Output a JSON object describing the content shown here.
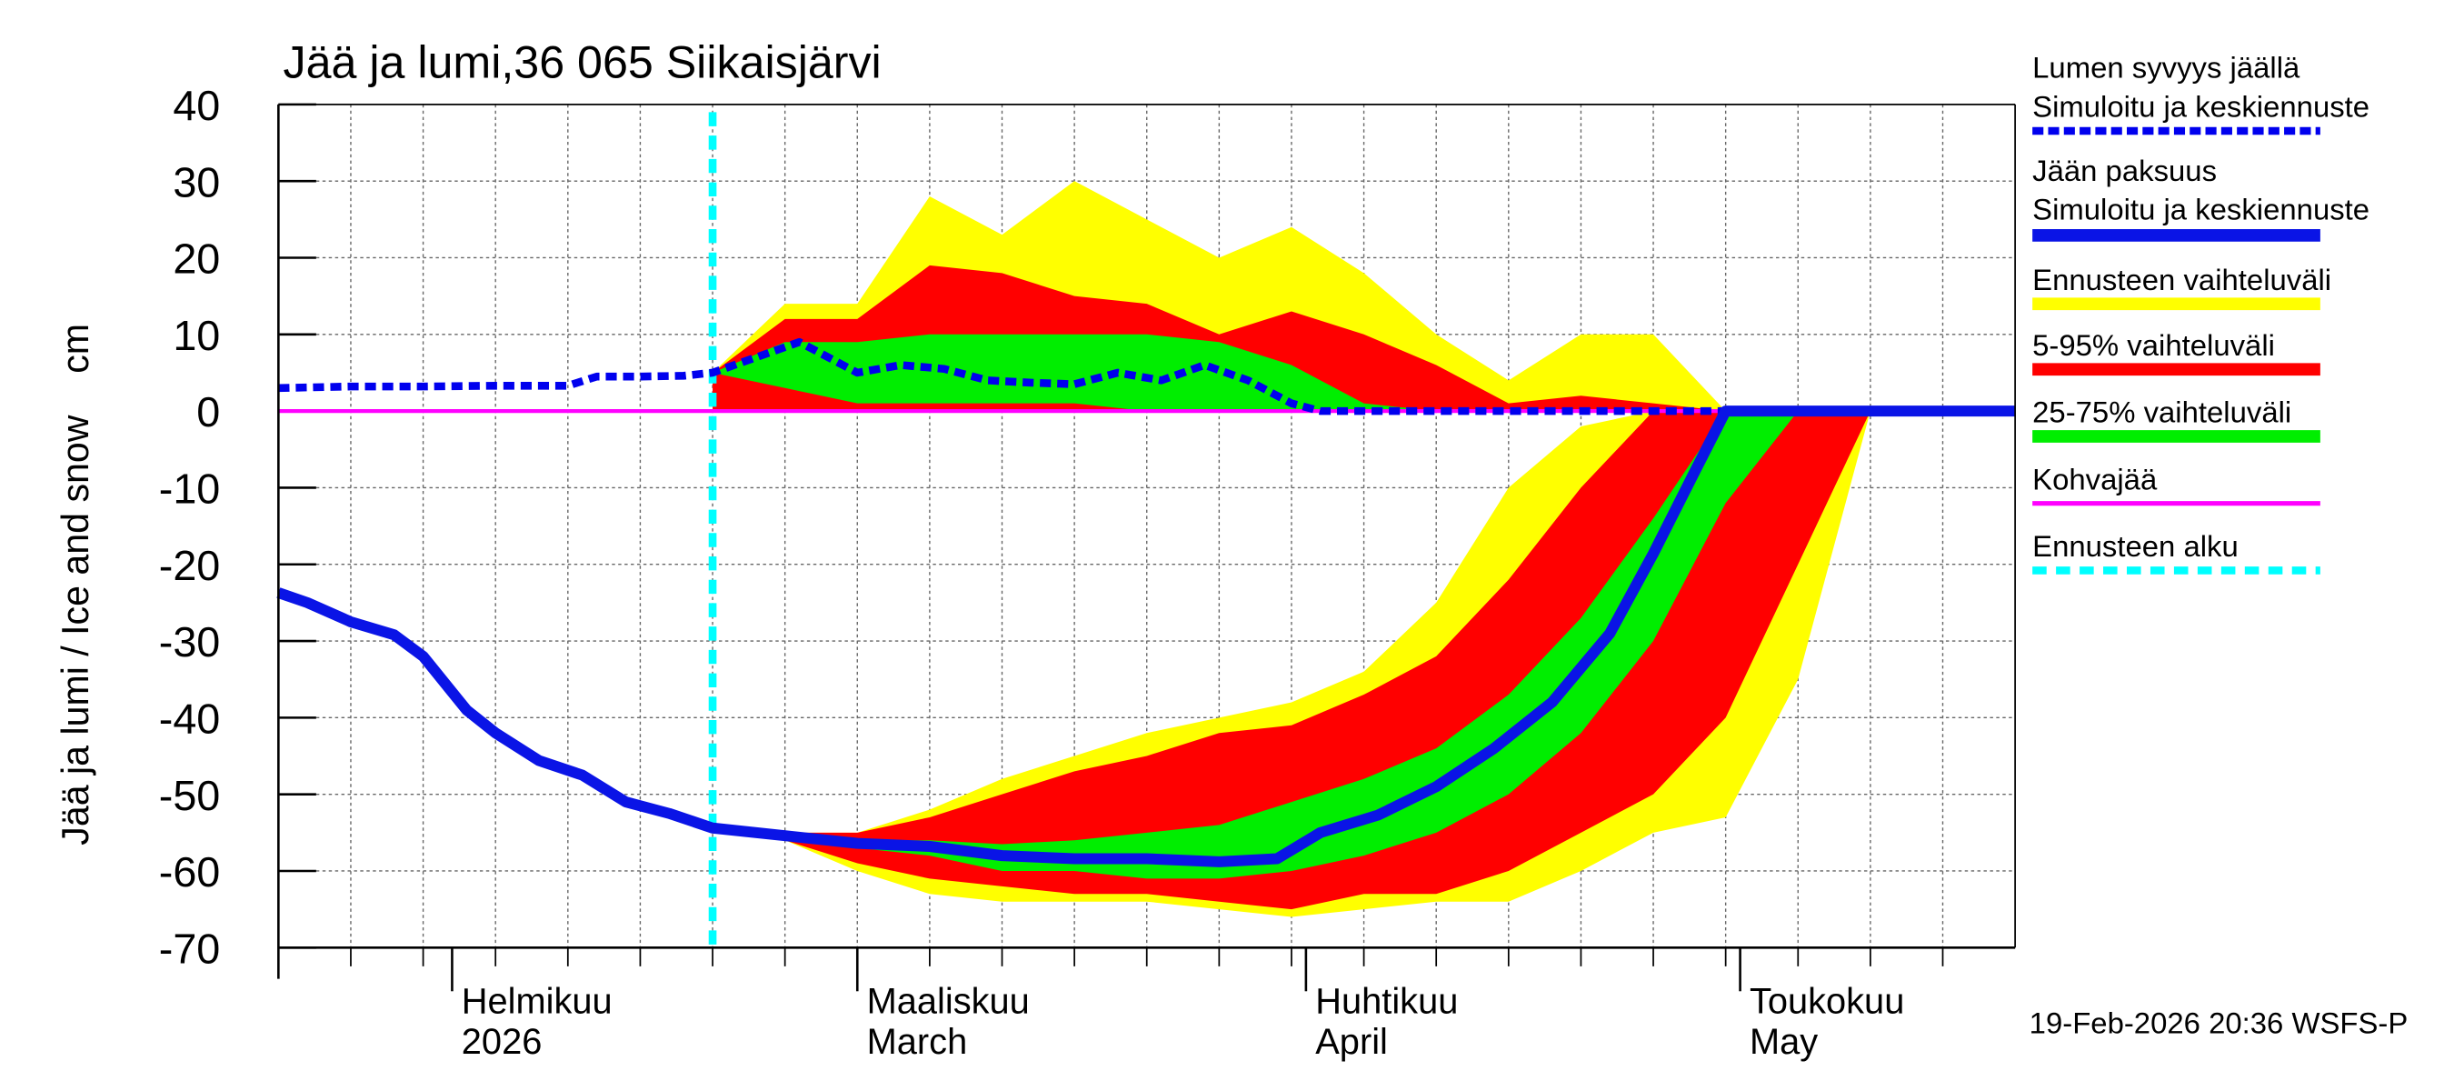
{
  "chart_data": {
    "type": "line",
    "title": "Jää ja lumi,36 065 Siikaisjärvi",
    "y_label": "Jää ja lumi / Ice and snow    cm",
    "footer": "19-Feb-2026 20:36 WSFS-P",
    "xlim": [
      20,
      140
    ],
    "xticks": [
      {
        "value": 32,
        "label": "Helmikuu\n2026"
      },
      {
        "value": 60,
        "label": "Maaliskuu\nMarch"
      },
      {
        "value": 91,
        "label": "Huhtikuu\nApril"
      },
      {
        "value": 121,
        "label": "Toukokuu\nMay"
      }
    ],
    "ylim": [
      -70,
      40
    ],
    "yticks": [
      40,
      30,
      20,
      10,
      0,
      -10,
      -20,
      -30,
      -40,
      -50,
      -60,
      -70
    ],
    "grid": true,
    "series": [
      {
        "name": "Lumen syvyys jäällä\nSimuloitu ja keskiennuste",
        "color": "#0000ee",
        "line_style": "dashed",
        "x": [
          20,
          25,
          30,
          35,
          40,
          42,
          45,
          48,
          50,
          53,
          56,
          58,
          60,
          63,
          66,
          69,
          72,
          75,
          78,
          81,
          84,
          87,
          90,
          92,
          100,
          110,
          120,
          130,
          140
        ],
        "values": [
          3,
          3.2,
          3.2,
          3.3,
          3.3,
          4.5,
          4.5,
          4.6,
          5,
          7,
          9,
          7,
          5,
          6,
          5.5,
          4,
          3.7,
          3.5,
          5,
          4,
          6,
          4,
          1,
          0,
          0,
          0,
          0,
          0,
          0
        ]
      },
      {
        "name": "Jään paksuus\nSimuloitu ja keskiennuste",
        "color": "#0a14e6",
        "line_style": "solid",
        "x": [
          20,
          22,
          25,
          28,
          30,
          33,
          35,
          38,
          41,
          44,
          47,
          50,
          55,
          60,
          65,
          70,
          75,
          80,
          85,
          89,
          92,
          96,
          100,
          104,
          108,
          112,
          115,
          118,
          120,
          130,
          140
        ],
        "values": [
          -23.7,
          -25,
          -27.5,
          -29.2,
          -32,
          -39,
          -42,
          -45.6,
          -47.5,
          -51,
          -52.5,
          -54.4,
          -55.4,
          -56.4,
          -56.8,
          -58,
          -58.4,
          -58.4,
          -58.8,
          -58.4,
          -55,
          -52.7,
          -49,
          -44,
          -38,
          -29,
          -18.6,
          -7.4,
          0,
          0,
          0
        ]
      },
      {
        "name": "Kohvajää",
        "color": "#ff00ff",
        "line_style": "thin",
        "x": [
          20,
          140
        ],
        "values": [
          0,
          0
        ]
      }
    ],
    "bands": [
      {
        "name": "Ennusteen vaihteluväli",
        "color": "#ffff00",
        "x": [
          50,
          55,
          60,
          65,
          70,
          75,
          80,
          85,
          90,
          95,
          100,
          105,
          110,
          115,
          120,
          125,
          130
        ],
        "snow_upper": [
          5,
          14,
          14,
          28,
          23,
          30,
          25,
          20,
          24,
          18,
          10,
          4,
          10,
          10,
          0,
          0,
          0
        ],
        "snow_lower": [
          0,
          0,
          0,
          0,
          0,
          0,
          0,
          0,
          0,
          0,
          0,
          0,
          0,
          0,
          0,
          0,
          0
        ],
        "ice_upper": [
          -54.4,
          -55,
          -55,
          -52,
          -48,
          -45,
          -42,
          -40,
          -38,
          -34,
          -25,
          -10,
          -2,
          0,
          0,
          0,
          0
        ],
        "ice_lower": [
          -54.4,
          -56,
          -60,
          -63,
          -64,
          -64,
          -64,
          -65,
          -66,
          -65,
          -64,
          -64,
          -60,
          -55,
          -53,
          -35,
          0
        ]
      },
      {
        "name": "5-95% vaihteluväli",
        "color": "#ff0000",
        "x": [
          50,
          55,
          60,
          65,
          70,
          75,
          80,
          85,
          90,
          95,
          100,
          105,
          110,
          115,
          120,
          125,
          130
        ],
        "snow_upper": [
          5,
          12,
          12,
          19,
          18,
          15,
          14,
          10,
          13,
          10,
          6,
          1,
          2,
          1,
          0,
          0,
          0
        ],
        "snow_lower": [
          0,
          0,
          0,
          0,
          0,
          0,
          0,
          0,
          0,
          0,
          0,
          0,
          0,
          0,
          0,
          0,
          0
        ],
        "ice_upper": [
          -54.4,
          -55,
          -55,
          -53,
          -50,
          -47,
          -45,
          -42,
          -41,
          -37,
          -32,
          -22,
          -10,
          0,
          0,
          0,
          0
        ],
        "ice_lower": [
          -54.4,
          -56,
          -59,
          -61,
          -62,
          -63,
          -63,
          -64,
          -65,
          -63,
          -63,
          -60,
          -55,
          -50,
          -40,
          -20,
          0
        ]
      },
      {
        "name": "25-75% vaihteluväli",
        "color": "#00ee00",
        "x": [
          50,
          55,
          60,
          65,
          70,
          75,
          80,
          85,
          90,
          95,
          100,
          105,
          110,
          115,
          120,
          125,
          130
        ],
        "snow_upper": [
          5,
          9,
          9,
          10,
          10,
          10,
          10,
          9,
          6,
          1,
          0,
          0,
          0,
          0,
          0,
          0,
          0
        ],
        "snow_lower": [
          5,
          3,
          1,
          1,
          1,
          1,
          0,
          0,
          0,
          0,
          0,
          0,
          0,
          0,
          0,
          0,
          0
        ],
        "ice_upper": [
          -54.4,
          -55.5,
          -56,
          -56,
          -56.5,
          -56,
          -55,
          -54,
          -51,
          -48,
          -44,
          -37,
          -27,
          -14,
          0,
          0,
          0
        ],
        "ice_lower": [
          -54.4,
          -56,
          -57,
          -58,
          -60,
          -60,
          -61,
          -61,
          -60,
          -58,
          -55,
          -50,
          -42,
          -30,
          -12,
          0,
          0
        ]
      }
    ],
    "forecast_start": {
      "name": "Ennusteen alku",
      "color": "#00ffff",
      "x": 50
    }
  }
}
